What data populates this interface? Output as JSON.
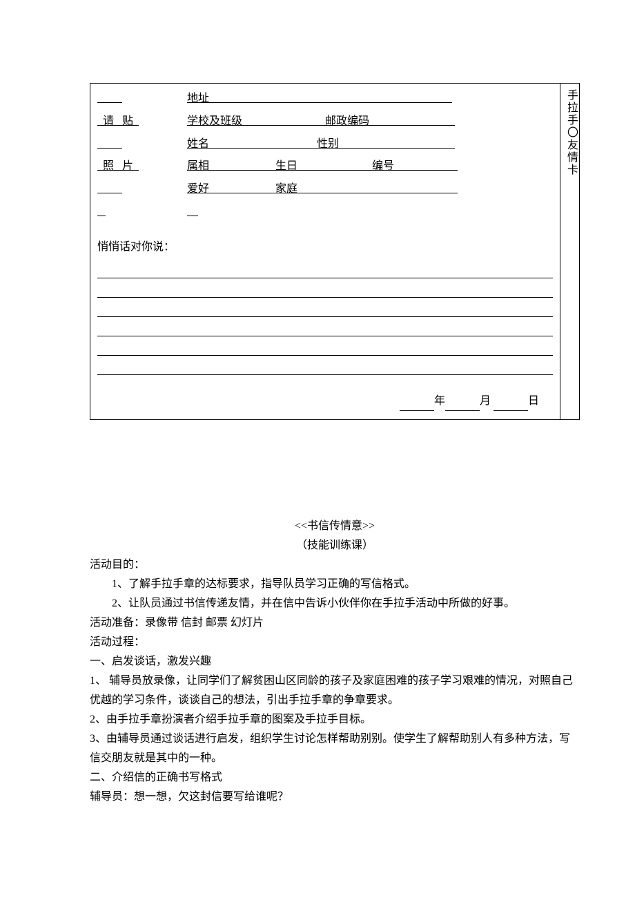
{
  "card": {
    "side_label": "手拉手〇友情卡",
    "photo_col": {
      "line1": "         ",
      "line2": "  请   贴  ",
      "line3": "         ",
      "line4": "  照   片  ",
      "line5": "         ",
      "line6": "   ",
      "line7": ""
    },
    "fields": {
      "address": "地址                                                                                        ",
      "school_postal": "学校及班级                              邮政编码                               ",
      "name_gender": "姓名                                       性别                                          ",
      "zodiac_bd_no": "属相                        生日                           编号                       ",
      "hobby_family": "爱好                        家庭                                                          ",
      "blank": "    "
    },
    "whisper_label": "悄悄话对你说：",
    "date": {
      "year": "年",
      "month": "月",
      "day": "日"
    }
  },
  "doc": {
    "title": "<<书信传情意>>",
    "subtitle": "（技能训练课）",
    "purpose_label": "活动目的：",
    "purpose1": "1、了解手拉手章的达标要求，指导队员学习正确的写信格式。",
    "purpose2": "2、让队员通过书信传递友情，并在信中告诉小伙伴你在手拉手活动中所做的好事。",
    "prep": "活动准备：录像带   信封     邮票   幻灯片",
    "process_label": "活动过程：",
    "h1": "一、启发谈话，激发兴趣",
    "p1": "1、 辅导员放录像，让同学们了解贫困山区同龄的孩子及家庭困难的孩子学习艰难的情况，对照自己优越的学习条件，谈谈自己的想法，引出手拉手章的争章要求。",
    "p2": "2、由手拉手章扮演者介绍手拉手章的图案及手拉手目标。",
    "p3": "3、由辅导员通过谈话进行启发，组织学生讨论怎样帮助别别。使学生了解帮助别人有多种方法，写信交朋友就是其中的一种。",
    "h2": "二、介绍信的正确书写格式",
    "p4": "辅导员：想一想，欠这封信要写给谁呢？"
  }
}
